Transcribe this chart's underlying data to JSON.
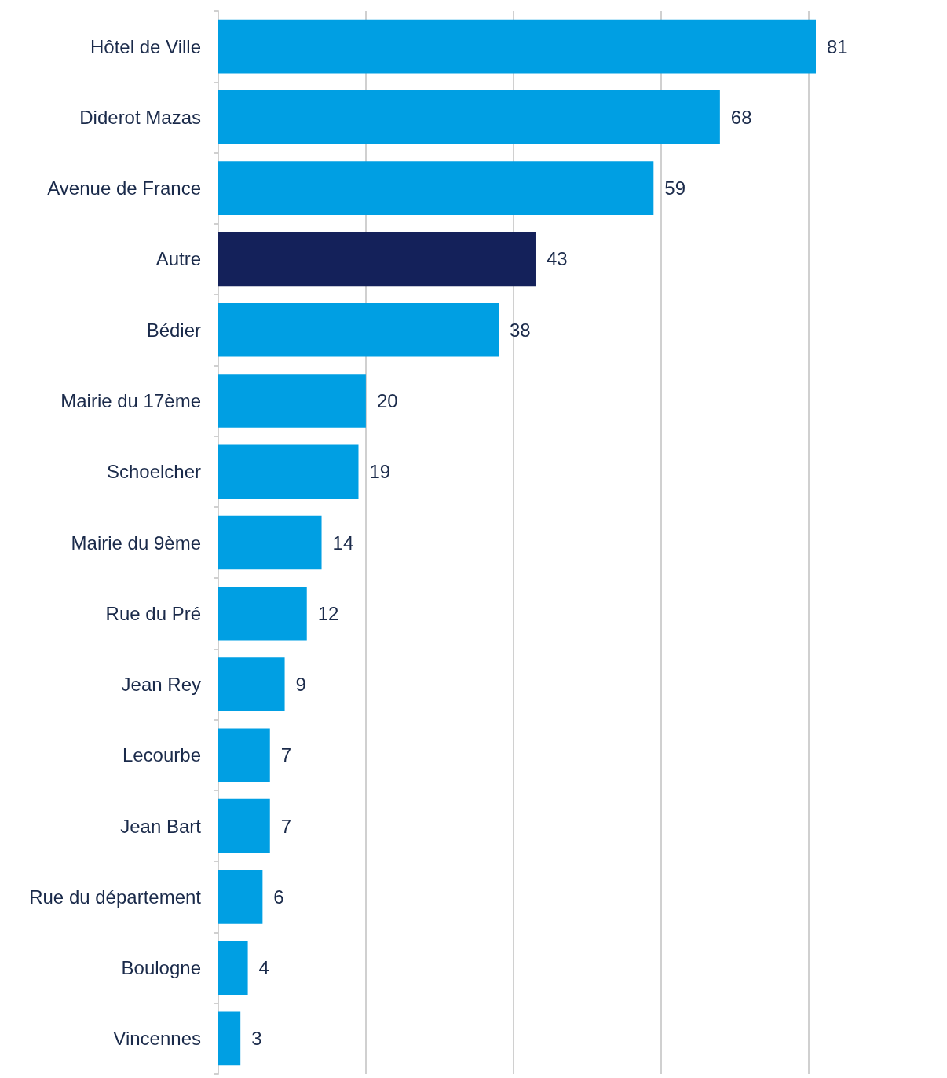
{
  "chart_data": {
    "type": "bar",
    "orientation": "horizontal",
    "categories": [
      "Hôtel de Ville",
      "Diderot Mazas",
      "Avenue de France",
      "Autre",
      "Bédier",
      "Mairie du 17ème",
      "Schoelcher",
      "Mairie du 9ème",
      "Rue du Pré",
      "Jean Rey",
      "Lecourbe",
      "Jean Bart",
      "Rue du département",
      "Boulogne",
      "Vincennes"
    ],
    "values": [
      81,
      68,
      59,
      43,
      38,
      20,
      19,
      14,
      12,
      9,
      7,
      7,
      6,
      4,
      3
    ],
    "colors": [
      "#009fe3",
      "#009fe3",
      "#009fe3",
      "#14215a",
      "#009fe3",
      "#009fe3",
      "#009fe3",
      "#009fe3",
      "#009fe3",
      "#009fe3",
      "#009fe3",
      "#009fe3",
      "#009fe3",
      "#009fe3",
      "#009fe3"
    ],
    "xticks": [
      {
        "value": 0,
        "label": null
      },
      {
        "value": 20,
        "label": null
      },
      {
        "value": 40,
        "label": null
      },
      {
        "value": 60,
        "label": null
      },
      {
        "value": 80,
        "label": null
      }
    ],
    "grid": "x",
    "tick_labels": "y",
    "data_labels": true
  }
}
